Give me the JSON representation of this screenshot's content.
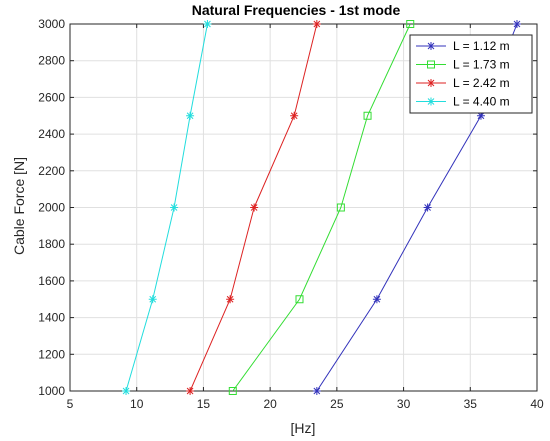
{
  "chart_data": {
    "type": "line",
    "title": "Natural Frequencies - 1st mode",
    "xlabel": "[Hz]",
    "ylabel": "Cable Force [N]",
    "xlim": [
      5,
      40
    ],
    "ylim": [
      1000,
      3000
    ],
    "xticks": [
      5,
      10,
      15,
      20,
      25,
      30,
      35,
      40
    ],
    "yticks": [
      1000,
      1200,
      1400,
      1600,
      1800,
      2000,
      2200,
      2400,
      2600,
      2800,
      3000
    ],
    "grid": true,
    "legend_position": "top-right",
    "series": [
      {
        "name": "L = 1.12 m",
        "color": "#3333bb",
        "marker": "asterisk",
        "x": [
          23.5,
          28.0,
          31.8,
          35.8,
          38.5
        ],
        "y": [
          1000,
          1500,
          2000,
          2500,
          3000
        ]
      },
      {
        "name": "L = 1.73 m",
        "color": "#33dd33",
        "marker": "square",
        "x": [
          17.2,
          22.2,
          25.3,
          27.3,
          30.5
        ],
        "y": [
          1000,
          1500,
          2000,
          2500,
          3000
        ]
      },
      {
        "name": "L = 2.42 m",
        "color": "#dd2222",
        "marker": "asterisk",
        "x": [
          14.0,
          17.0,
          18.8,
          21.8,
          23.5
        ],
        "y": [
          1000,
          1500,
          2000,
          2500,
          3000
        ]
      },
      {
        "name": "L = 4.40 m",
        "color": "#22dddd",
        "marker": "asterisk",
        "x": [
          9.2,
          11.2,
          12.8,
          14.0,
          15.3
        ],
        "y": [
          1000,
          1500,
          2000,
          2500,
          3000
        ]
      }
    ]
  }
}
